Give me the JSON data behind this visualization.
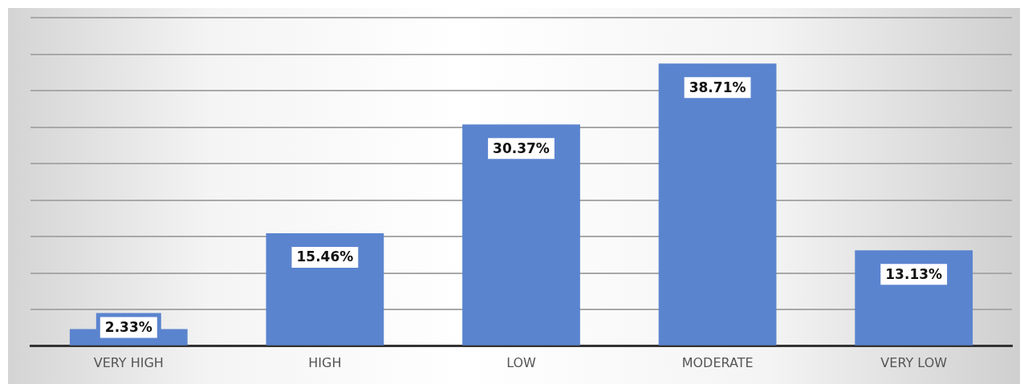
{
  "chart_data": {
    "type": "bar",
    "categories": [
      "VERY HIGH",
      "HIGH",
      "LOW",
      "MODERATE",
      "VERY LOW"
    ],
    "values": [
      2.33,
      15.46,
      30.37,
      38.71,
      13.13
    ],
    "value_labels": [
      "2.33%",
      "15.46%",
      "30.37%",
      "38.71%",
      "13.13%"
    ],
    "color": "#5b84cf",
    "ylim": [
      0,
      45
    ],
    "yticks": [
      {
        "value": 0,
        "label": null
      },
      {
        "value": 5,
        "label": null
      },
      {
        "value": 10,
        "label": null
      },
      {
        "value": 15,
        "label": null
      },
      {
        "value": 20,
        "label": null
      },
      {
        "value": 25,
        "label": null
      },
      {
        "value": 30,
        "label": null
      },
      {
        "value": 35,
        "label": null
      },
      {
        "value": 40,
        "label": null
      },
      {
        "value": 45,
        "label": null
      }
    ],
    "grid": "y",
    "legend": false,
    "tick_labels": "x"
  }
}
